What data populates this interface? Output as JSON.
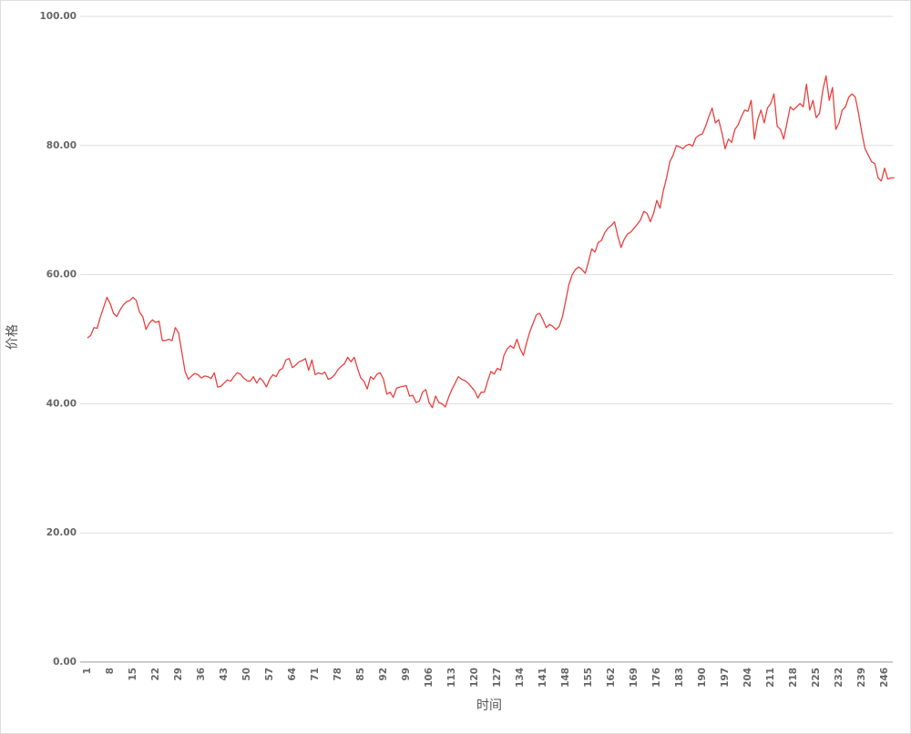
{
  "chart_data": {
    "type": "line",
    "y_label": "价格",
    "x_label": "时间",
    "categories": [
      1,
      null,
      null,
      null,
      null,
      null,
      null,
      8,
      null,
      null,
      null,
      null,
      null,
      null,
      15,
      null,
      null,
      null,
      null,
      null,
      null,
      22,
      null,
      null,
      null,
      null,
      null,
      null,
      29,
      null,
      null,
      null,
      null,
      null,
      null,
      36,
      null,
      null,
      null,
      null,
      null,
      null,
      43,
      null,
      null,
      null,
      null,
      null,
      null,
      50,
      null,
      null,
      null,
      null,
      null,
      null,
      57,
      null,
      null,
      null,
      null,
      null,
      null,
      64,
      null,
      null,
      null,
      null,
      null,
      null,
      71,
      null,
      null,
      null,
      null,
      null,
      null,
      78,
      null,
      null,
      null,
      null,
      null,
      null,
      85,
      null,
      null,
      null,
      null,
      null,
      null,
      92,
      null,
      null,
      null,
      null,
      null,
      null,
      99,
      null,
      null,
      null,
      null,
      null,
      null,
      106,
      null,
      null,
      null,
      null,
      null,
      null,
      113,
      null,
      null,
      null,
      null,
      null,
      null,
      120,
      null,
      null,
      null,
      null,
      null,
      null,
      127,
      null,
      null,
      null,
      null,
      null,
      null,
      134,
      null,
      null,
      null,
      null,
      null,
      null,
      141,
      null,
      null,
      null,
      null,
      null,
      null,
      148,
      null,
      null,
      null,
      null,
      null,
      null,
      155,
      null,
      null,
      null,
      null,
      null,
      null,
      162,
      null,
      null,
      null,
      null,
      null,
      null,
      169,
      null,
      null,
      null,
      null,
      null,
      null,
      176,
      null,
      null,
      null,
      null,
      null,
      null,
      183,
      null,
      null,
      null,
      null,
      null,
      null,
      190,
      null,
      null,
      null,
      null,
      null,
      null,
      197,
      null,
      null,
      null,
      null,
      null,
      null,
      204,
      null,
      null,
      null,
      null,
      null,
      null,
      211,
      null,
      null,
      null,
      null,
      null,
      null,
      218,
      null,
      null,
      null,
      null,
      null,
      null,
      225,
      null,
      null,
      null,
      null,
      null,
      null,
      232,
      null,
      null,
      null,
      null,
      null,
      null,
      239,
      null,
      null,
      null,
      null,
      null,
      null,
      246,
      null,
      null,
      null
    ],
    "series": [
      {
        "color": "#e8413f",
        "values": [
          50.2,
          50.6,
          51.8,
          51.7,
          53.5,
          55,
          56.5,
          55.5,
          54,
          53.5,
          54.5,
          55.3,
          55.8,
          56,
          56.5,
          56,
          54.2,
          53.5,
          51.5,
          52.5,
          53,
          52.6,
          52.8,
          49.8,
          49.8,
          50,
          49.8,
          51.8,
          51,
          48,
          45,
          43.8,
          44.3,
          44.7,
          44.5,
          44,
          44.3,
          44.2,
          43.9,
          44.8,
          42.6,
          42.7,
          43.2,
          43.7,
          43.5,
          44.2,
          44.8,
          44.6,
          44,
          43.6,
          43.5,
          44.2,
          43.2,
          44,
          43.5,
          42.6,
          43.8,
          44.5,
          44.2,
          45.2,
          45.5,
          46.8,
          47,
          45.6,
          46,
          46.5,
          46.7,
          47,
          45.2,
          46.8,
          44.5,
          44.8,
          44.6,
          44.9,
          43.8,
          44,
          44.5,
          45.3,
          45.8,
          46.2,
          47.2,
          46.5,
          47.2,
          45.5,
          44,
          43.5,
          42.3,
          44.2,
          43.8,
          44.6,
          44.8,
          43.8,
          41.5,
          41.8,
          41,
          42.4,
          42.6,
          42.7,
          42.8,
          41.2,
          41.3,
          40.2,
          40.4,
          41.8,
          42.2,
          40.2,
          39.4,
          41.2,
          40.2,
          40,
          39.5,
          41,
          42.2,
          43.2,
          44.2,
          43.8,
          43.6,
          43.2,
          42.6,
          42,
          40.9,
          41.8,
          41.8,
          43.5,
          45,
          44.6,
          45.5,
          45.2,
          47.5,
          48.5,
          49,
          48.6,
          50,
          48.5,
          47.5,
          49.5,
          51.2,
          52.5,
          53.8,
          54,
          53,
          51.8,
          52.3,
          52,
          51.5,
          52,
          53.5,
          56,
          58.5,
          60,
          60.8,
          61.2,
          60.8,
          60.2,
          62,
          64,
          63.5,
          65,
          65.3,
          66.5,
          67.2,
          67.6,
          68.2,
          66,
          64.2,
          65.5,
          66.3,
          66.6,
          67.2,
          67.8,
          68.5,
          69.8,
          69.5,
          68.2,
          69.5,
          71.5,
          70.3,
          73,
          75,
          77.5,
          78.5,
          80,
          79.8,
          79.5,
          80,
          80.2,
          79.9,
          81.2,
          81.6,
          81.8,
          83,
          84.5,
          85.8,
          83.5,
          84,
          82,
          79.5,
          81,
          80.5,
          82.5,
          83.2,
          84.5,
          85.5,
          85.3,
          87,
          81,
          84,
          85.5,
          83.5,
          85.8,
          86.5,
          88,
          83,
          82.5,
          81,
          83.5,
          86,
          85.5,
          86,
          86.5,
          86,
          89.5,
          85.5,
          87,
          84.3,
          85,
          88.5,
          90.8,
          87,
          89,
          82.5,
          83.5,
          85.5,
          86,
          87.5,
          88,
          87.5,
          85,
          82,
          79.5,
          78.5,
          77.5,
          77.2,
          75,
          74.5,
          76.5,
          74.8,
          75,
          75
        ]
      }
    ],
    "ylim": [
      0,
      100
    ],
    "yticks": [
      {
        "value": 0,
        "label": "0.00"
      },
      {
        "value": 20,
        "label": "20.00"
      },
      {
        "value": 40,
        "label": "40.00"
      },
      {
        "value": 60,
        "label": "60.00"
      },
      {
        "value": 80,
        "label": "80.00"
      },
      {
        "value": 100,
        "label": "100.00"
      }
    ],
    "grid": true
  }
}
